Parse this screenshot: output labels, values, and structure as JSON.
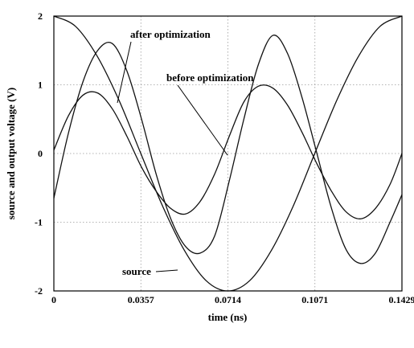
{
  "chart_data": {
    "type": "line",
    "title": "",
    "xlabel": "time (ns)",
    "ylabel": "source and output voltage (V)",
    "xlim": [
      0,
      0.1429
    ],
    "ylim": [
      -2,
      2
    ],
    "x_ticks": [
      "0",
      "0.0357",
      "0.0714",
      "0.1071",
      "0.1429"
    ],
    "y_ticks": [
      "2",
      "1",
      "0",
      "-1",
      "-2"
    ],
    "grid": true,
    "annotations": [
      {
        "text": "after optimization",
        "series": "after optimization"
      },
      {
        "text": "before optimization",
        "series": "before optimization"
      },
      {
        "text": "source",
        "series": "source"
      }
    ],
    "series": [
      {
        "name": "source",
        "x": [
          0,
          0.0089,
          0.0179,
          0.0268,
          0.0357,
          0.0447,
          0.0536,
          0.0625,
          0.0714,
          0.0804,
          0.0893,
          0.0982,
          0.1071,
          0.1161,
          0.125,
          0.1339,
          0.1429
        ],
        "y": [
          2,
          1.85,
          1.41,
          0.77,
          0,
          -0.77,
          -1.41,
          -1.85,
          -2,
          -1.85,
          -1.41,
          -0.77,
          0,
          0.77,
          1.41,
          1.85,
          2
        ]
      },
      {
        "name": "after optimization",
        "x": [
          0,
          0.006,
          0.012,
          0.018,
          0.024,
          0.03,
          0.036,
          0.042,
          0.048,
          0.054,
          0.06,
          0.066,
          0.072,
          0.078,
          0.084,
          0.09,
          0.096,
          0.102,
          0.108,
          0.114,
          0.12,
          0.126,
          0.132,
          0.138,
          0.1429
        ],
        "y": [
          -0.65,
          0.3,
          1.05,
          1.5,
          1.6,
          1.2,
          0.5,
          -0.3,
          -0.95,
          -1.35,
          -1.45,
          -1.2,
          -0.4,
          0.5,
          1.3,
          1.72,
          1.45,
          0.8,
          0,
          -0.8,
          -1.4,
          -1.6,
          -1.45,
          -1.0,
          -0.6
        ]
      },
      {
        "name": "before optimization",
        "x": [
          0,
          0.006,
          0.012,
          0.018,
          0.024,
          0.03,
          0.036,
          0.042,
          0.048,
          0.054,
          0.06,
          0.066,
          0.072,
          0.078,
          0.084,
          0.09,
          0.096,
          0.102,
          0.108,
          0.114,
          0.12,
          0.126,
          0.132,
          0.138,
          0.1429
        ],
        "y": [
          0.05,
          0.55,
          0.85,
          0.88,
          0.65,
          0.25,
          -0.2,
          -0.55,
          -0.8,
          -0.88,
          -0.7,
          -0.3,
          0.25,
          0.75,
          0.98,
          0.95,
          0.7,
          0.3,
          -0.15,
          -0.55,
          -0.85,
          -0.95,
          -0.8,
          -0.45,
          0.0
        ]
      }
    ]
  }
}
